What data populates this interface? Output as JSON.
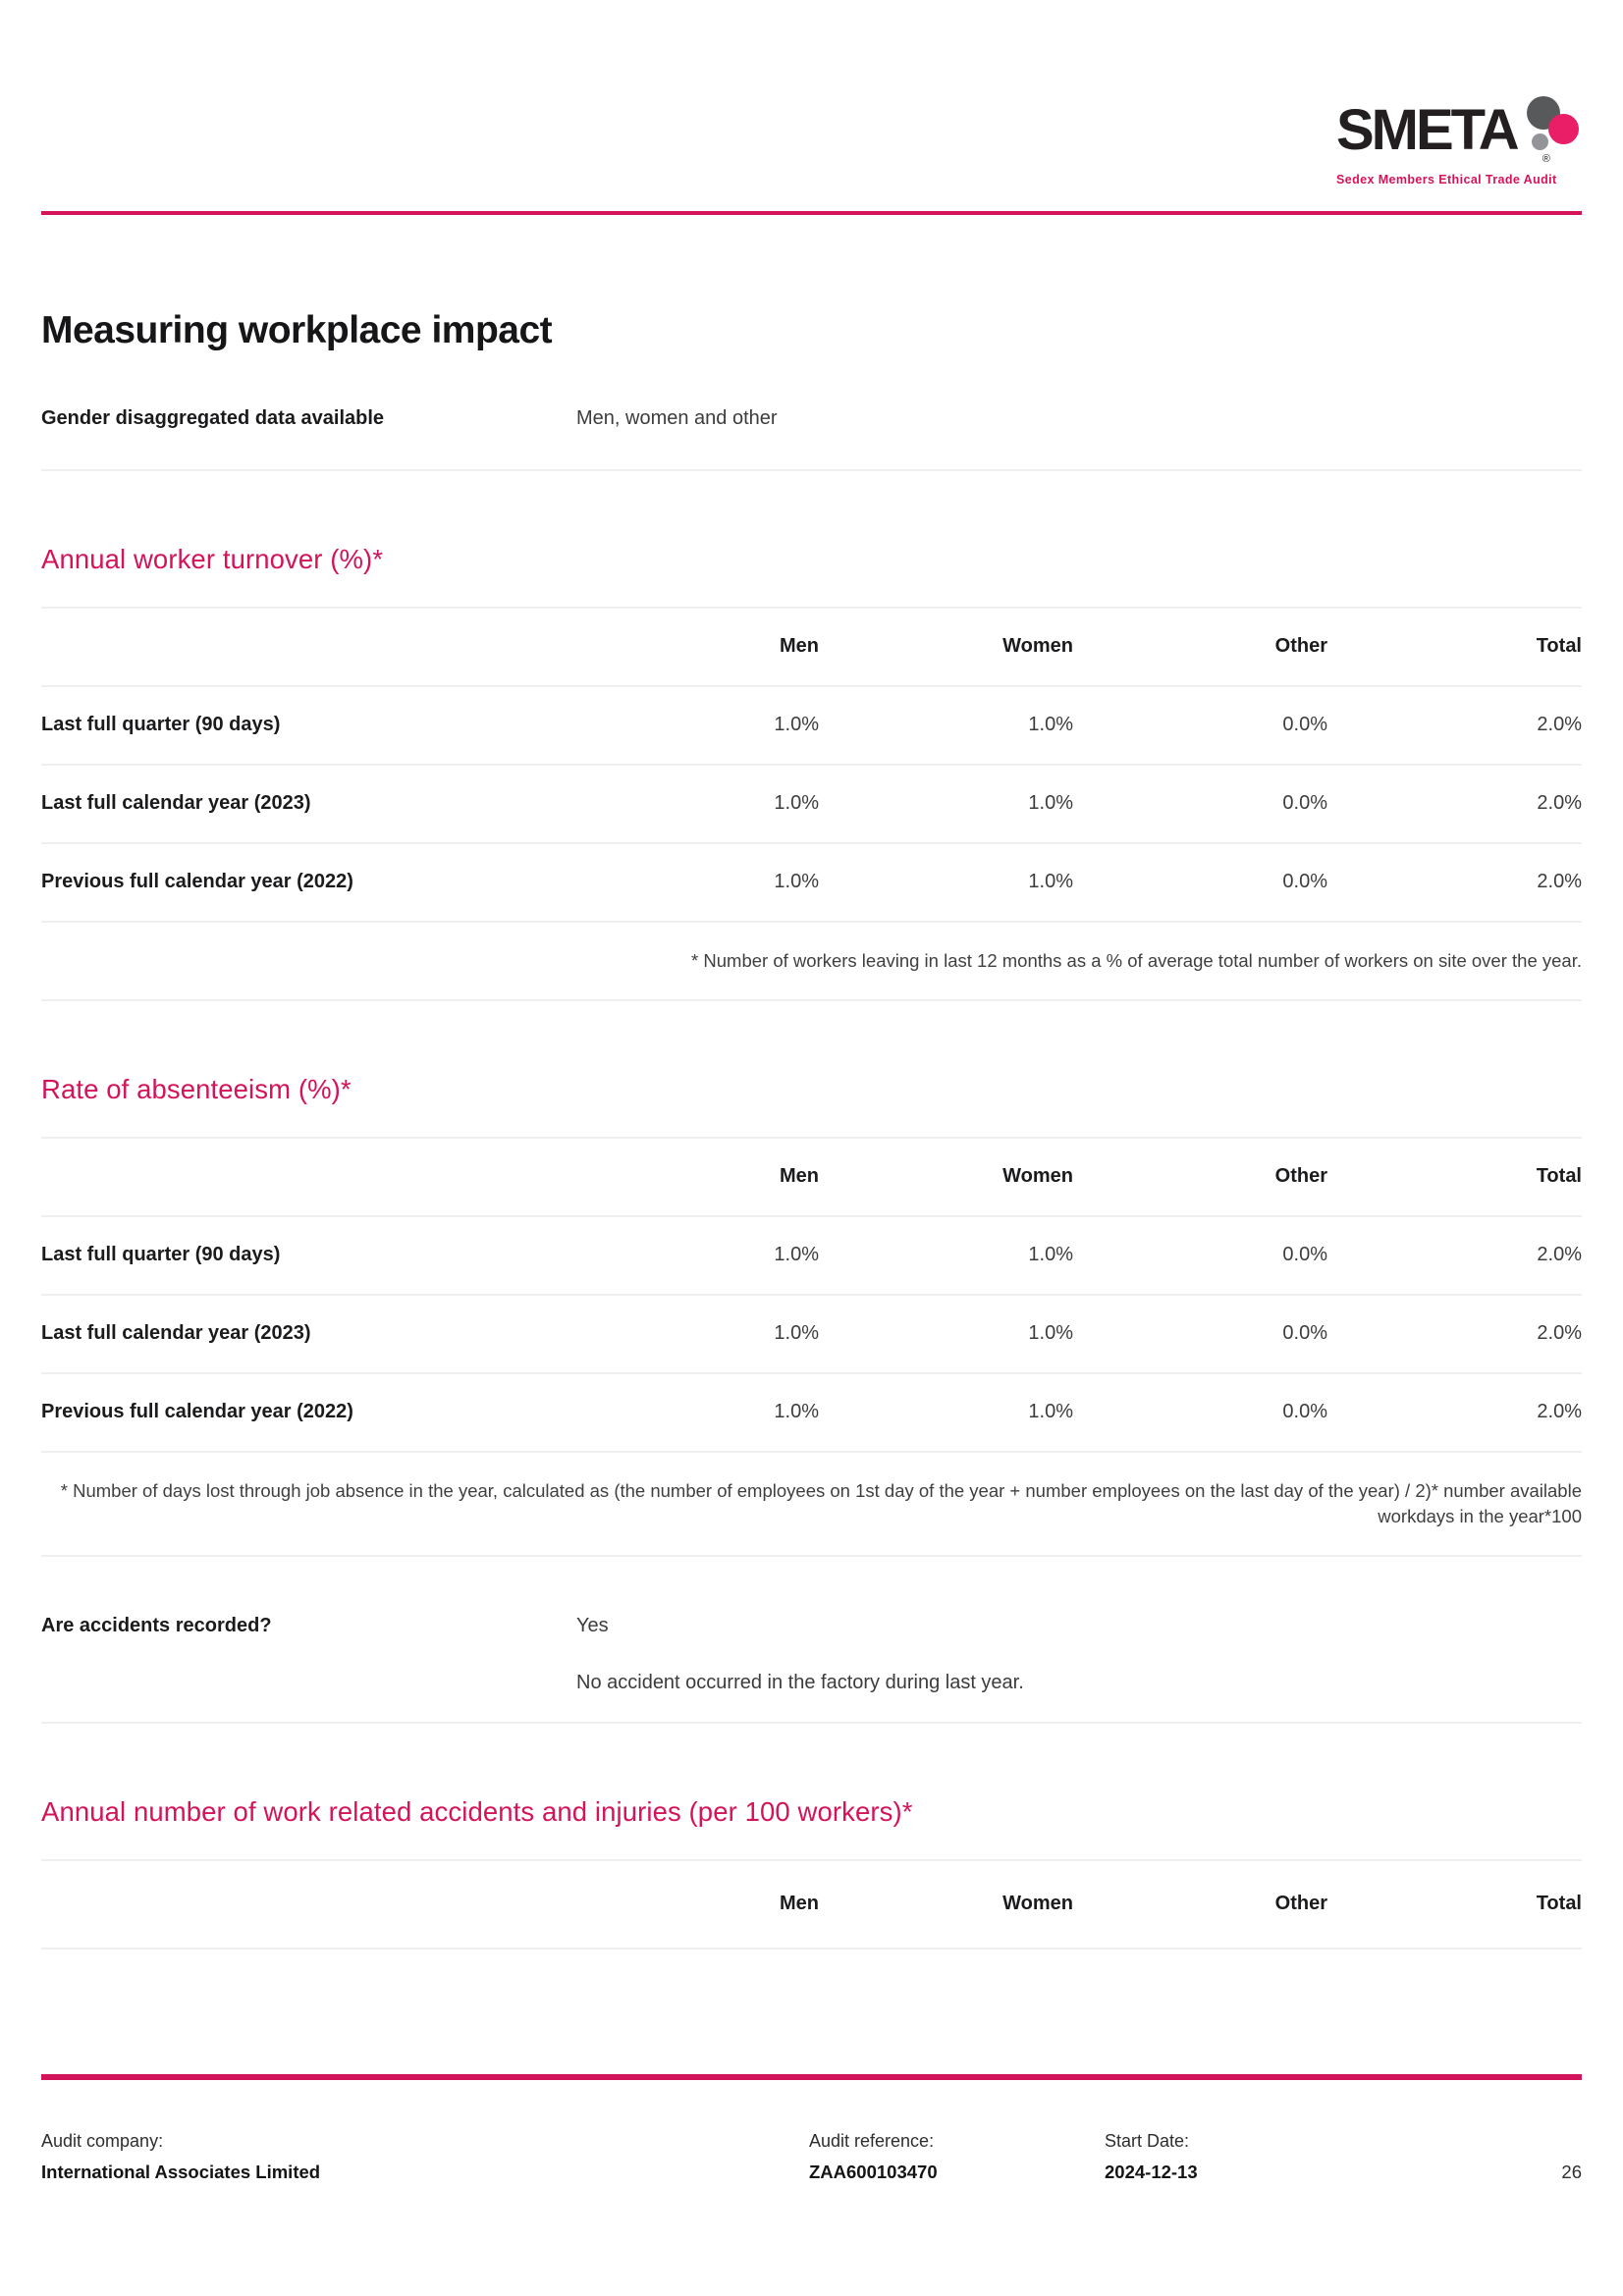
{
  "colors": {
    "accent": "#d4145a",
    "logo_dot_dark_gray": "#58595b",
    "logo_dot_light_gray": "#939598",
    "logo_dot_pink": "#ea1d67"
  },
  "logo": {
    "word": "SMETA",
    "registered": "®",
    "tagline": "Sedex Members Ethical Trade Audit"
  },
  "title": "Measuring workplace impact",
  "gender_row": {
    "label": "Gender disaggregated data available",
    "value": "Men, women and other"
  },
  "columns": [
    "Men",
    "Women",
    "Other",
    "Total"
  ],
  "turnover": {
    "heading": "Annual worker turnover (%)*",
    "rows": [
      {
        "label": "Last full quarter (90 days)",
        "values": [
          "1.0%",
          "1.0%",
          "0.0%",
          "2.0%"
        ]
      },
      {
        "label": "Last full calendar year (2023)",
        "values": [
          "1.0%",
          "1.0%",
          "0.0%",
          "2.0%"
        ]
      },
      {
        "label": "Previous full calendar year (2022)",
        "values": [
          "1.0%",
          "1.0%",
          "0.0%",
          "2.0%"
        ]
      }
    ],
    "footnote": "* Number of workers leaving in last 12 months as a % of average total number of workers on site over the year."
  },
  "absenteeism": {
    "heading": "Rate of absenteeism (%)*",
    "rows": [
      {
        "label": "Last full quarter (90 days)",
        "values": [
          "1.0%",
          "1.0%",
          "0.0%",
          "2.0%"
        ]
      },
      {
        "label": "Last full calendar year (2023)",
        "values": [
          "1.0%",
          "1.0%",
          "0.0%",
          "2.0%"
        ]
      },
      {
        "label": "Previous full calendar year (2022)",
        "values": [
          "1.0%",
          "1.0%",
          "0.0%",
          "2.0%"
        ]
      }
    ],
    "footnote": "* Number of days lost through job absence in the year, calculated as (the number of employees on 1st day of the year + number employees on the last day of the year) / 2)* number available workdays in the year*100"
  },
  "accidents_question": {
    "label": "Are accidents recorded?",
    "answer": "Yes",
    "note": "No accident occurred in the factory during last year."
  },
  "accidents": {
    "heading": "Annual number of work related accidents and injuries (per 100 workers)*"
  },
  "footer": {
    "audit_company_label": "Audit company:",
    "audit_company": "International Associates Limited",
    "audit_reference_label": "Audit reference:",
    "audit_reference": "ZAA600103470",
    "start_date_label": "Start Date:",
    "start_date": "2024-12-13",
    "page_number": "26"
  }
}
